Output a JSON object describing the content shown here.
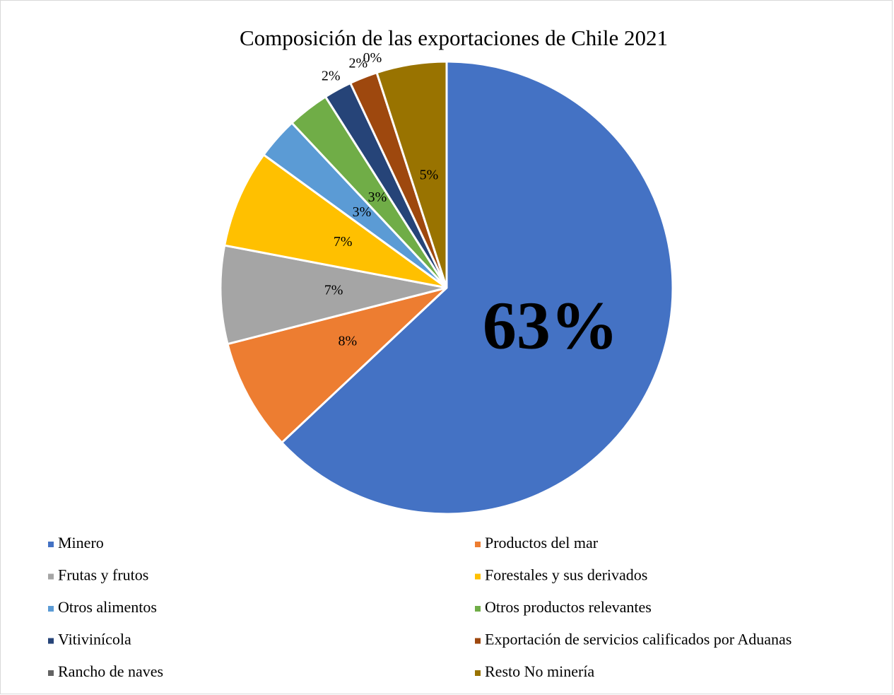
{
  "chart_data": {
    "type": "pie",
    "title": "Composición de las exportaciones de Chile 2021",
    "categories": [
      "Minero",
      "Productos del mar",
      "Frutas y frutos",
      "Forestales y sus derivados",
      "Otros alimentos",
      "Otros productos relevantes",
      "Vitivinícola",
      "Exportación de servicios calificados por Aduanas",
      "Rancho de naves",
      "Resto No minería"
    ],
    "values": [
      63,
      8,
      7,
      7,
      3,
      3,
      2,
      2,
      0,
      5
    ],
    "value_labels": [
      "63%",
      "8%",
      "7%",
      "7%",
      "3%",
      "3%",
      "2%",
      "2%",
      "0%",
      "5%"
    ],
    "colors": [
      "#4472c4",
      "#ed7d31",
      "#a5a5a5",
      "#ffc000",
      "#5b9bd5",
      "#70ad47",
      "#264478",
      "#9e480e",
      "#636363",
      "#997300"
    ]
  }
}
